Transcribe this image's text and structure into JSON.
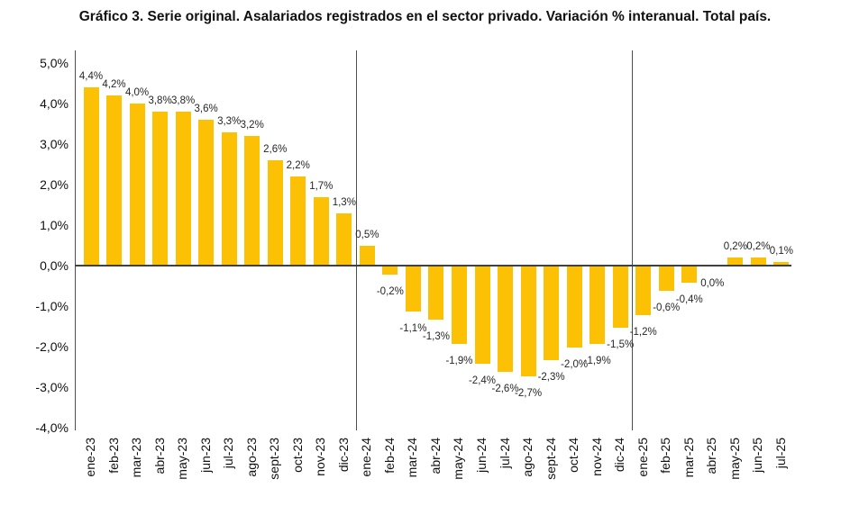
{
  "title": "Gráfico 3. Serie original. Asalariados registrados en el sector privado. Variación % interanual. Total país.",
  "colors": {
    "bar": "#FCC004",
    "axis_line": "#4d4d4d",
    "zero_line": "#404040",
    "text": "#111111",
    "label_text": "#262626",
    "background": "#ffffff"
  },
  "chart_data": {
    "type": "bar",
    "title": "Gráfico 3. Serie original. Asalariados registrados en el sector privado. Variación % interanual. Total país.",
    "xlabel": "",
    "ylabel": "",
    "ylim": [
      -4.0,
      5.0
    ],
    "grid": false,
    "legend": "none",
    "y_ticks": [
      {
        "value": 5,
        "label": "5,0%"
      },
      {
        "value": 4,
        "label": "4,0%"
      },
      {
        "value": 3,
        "label": "3,0%"
      },
      {
        "value": 2,
        "label": "2,0%"
      },
      {
        "value": 1,
        "label": "1,0%"
      },
      {
        "value": 0,
        "label": "0,0%"
      },
      {
        "value": -1,
        "label": "-1,0%"
      },
      {
        "value": -2,
        "label": "-2,0%"
      },
      {
        "value": -3,
        "label": "-3,0%"
      },
      {
        "value": -4,
        "label": "-4,0%"
      }
    ],
    "categories": [
      "ene-23",
      "feb-23",
      "mar-23",
      "abr-23",
      "may-23",
      "jun-23",
      "jul-23",
      "ago-23",
      "sept-23",
      "oct-23",
      "nov-23",
      "dic-23",
      "ene-24",
      "feb-24",
      "mar-24",
      "abr-24",
      "may-24",
      "jun-24",
      "jul-24",
      "ago-24",
      "sept-24",
      "oct-24",
      "nov-24",
      "dic-24",
      "ene-25",
      "feb-25",
      "mar-25",
      "abr-25",
      "may-25",
      "jun-25",
      "jul-25"
    ],
    "values": [
      4.4,
      4.2,
      4.0,
      3.8,
      3.8,
      3.6,
      3.3,
      3.2,
      2.6,
      2.2,
      1.7,
      1.3,
      0.5,
      -0.2,
      -1.1,
      -1.3,
      -1.9,
      -2.4,
      -2.6,
      -2.7,
      -2.3,
      -2.0,
      -1.9,
      -1.5,
      -1.2,
      -0.6,
      -0.4,
      0.0,
      0.2,
      0.2,
      0.1
    ],
    "value_labels": [
      "4,4%",
      "4,2%",
      "4,0%",
      "3,8%",
      "3,8%",
      "3,6%",
      "3,3%",
      "3,2%",
      "2,6%",
      "2,2%",
      "1,7%",
      "1,3%",
      "0,5%",
      "-0,2%",
      "-1,1%",
      "-1,3%",
      "-1,9%",
      "-2,4%",
      "-2,6%",
      "-2,7%",
      "-2,3%",
      "-2,0%",
      "-1,9%",
      "-1,5%",
      "-1,2%",
      "-0,6%",
      "-0,4%",
      "0,0%",
      "0,2%",
      "0,2%",
      "0,1%"
    ],
    "year_separators_after": [
      "dic-23",
      "dic-24"
    ]
  }
}
